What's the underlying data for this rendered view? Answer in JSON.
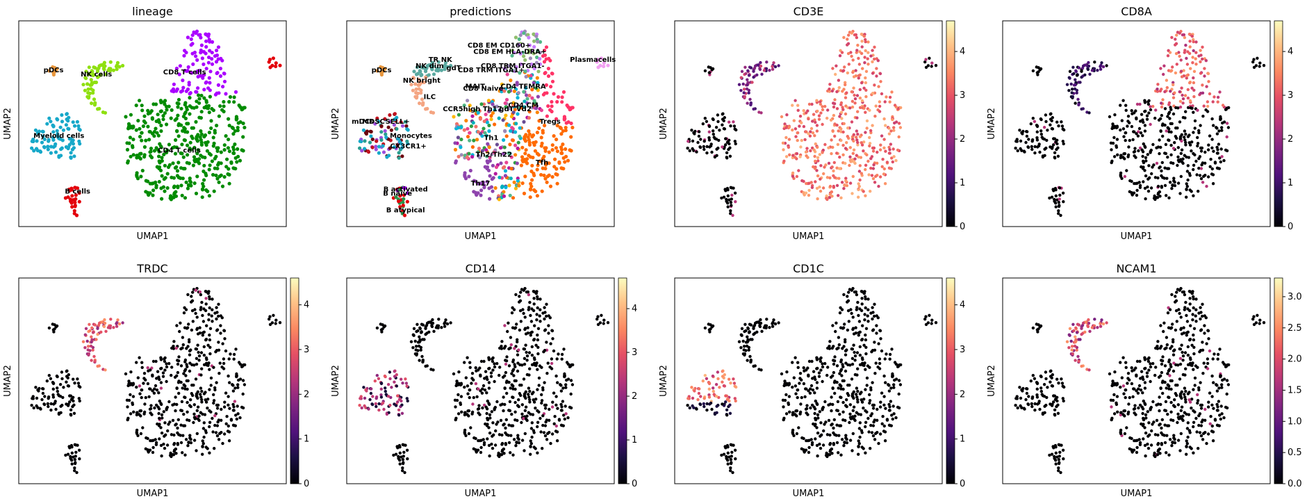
{
  "figure": {
    "panels": [
      {
        "title": "lineage",
        "xlabel": "UMAP1",
        "ylabel": "UMAP2",
        "kind": "categorical"
      },
      {
        "title": "predictions",
        "xlabel": "UMAP1",
        "ylabel": "UMAP2",
        "kind": "categorical"
      },
      {
        "title": "CD3E",
        "xlabel": "UMAP1",
        "ylabel": "UMAP2",
        "kind": "expression",
        "colorbar_ticks": [
          "0",
          "1",
          "2",
          "3",
          "4"
        ]
      },
      {
        "title": "CD8A",
        "xlabel": "UMAP1",
        "ylabel": "UMAP2",
        "kind": "expression",
        "colorbar_ticks": [
          "0",
          "1",
          "2",
          "3",
          "4"
        ]
      },
      {
        "title": "TRDC",
        "xlabel": "UMAP1",
        "ylabel": "UMAP2",
        "kind": "expression",
        "colorbar_ticks": [
          "0",
          "1",
          "2",
          "3",
          "4"
        ]
      },
      {
        "title": "CD14",
        "xlabel": "UMAP1",
        "ylabel": "UMAP2",
        "kind": "expression",
        "colorbar_ticks": [
          "0",
          "1",
          "2",
          "3",
          "4"
        ]
      },
      {
        "title": "CD1C",
        "xlabel": "UMAP1",
        "ylabel": "UMAP2",
        "kind": "expression",
        "colorbar_ticks": [
          "0",
          "1",
          "2",
          "3",
          "4"
        ]
      },
      {
        "title": "NCAM1",
        "xlabel": "UMAP1",
        "ylabel": "UMAP2",
        "kind": "expression",
        "colorbar_ticks": [
          "0.0",
          "0.5",
          "1.0",
          "1.5",
          "2.0",
          "2.5",
          "3.0"
        ]
      }
    ],
    "colormap": "magma",
    "colors": {
      "CD4 T cells": "#008b00",
      "CD8 T cells": "#aa00ff",
      "Myeloid cells": "#17a8c9",
      "NK cells": "#8fe010",
      "B cells": "#e3000b",
      "pDCs": "#e8963c",
      "Plasmacells": "#f2a0f2"
    }
  },
  "chart_data": [
    {
      "type": "scatter",
      "title": "lineage",
      "xlabel": "UMAP1",
      "ylabel": "UMAP2",
      "categories": [
        "pDCs",
        "NK cells",
        "CD8 T cells",
        "Myeloid cells",
        "CD4 T cells",
        "B cells"
      ],
      "legend": "on data"
    },
    {
      "type": "scatter",
      "title": "predictions",
      "xlabel": "UMAP1",
      "ylabel": "UMAP2",
      "categories": [
        "CD8 EM CD160+",
        "CD8 EM HLA-DRA+",
        "Plasmacells",
        "TR NK",
        "NK dim",
        "gdT",
        "CD8 TRM ITGA1-",
        "CD8 TRM ITGA1+",
        "pDCs",
        "NK bright",
        "MAIT",
        "CD8 Naive",
        "CD4 TEMRA",
        "ILC",
        "CD4 CM",
        "CCR5high Th17",
        "gdT Vd2",
        "Tregs",
        "mDCs",
        "MDSC",
        "Monocytes",
        "Th1",
        "Th2/Th22",
        "Tfh",
        "Th17",
        "B activated",
        "B naive",
        "B atypical",
        "SELL+",
        "CX3CR1+"
      ],
      "legend": "on data"
    },
    {
      "type": "scatter",
      "title": "CD3E",
      "xlabel": "UMAP1",
      "ylabel": "UMAP2",
      "colorbar": {
        "min": 0,
        "max": 4.7,
        "ticks": [
          0,
          1,
          2,
          3,
          4
        ]
      }
    },
    {
      "type": "scatter",
      "title": "CD8A",
      "xlabel": "UMAP1",
      "ylabel": "UMAP2",
      "colorbar": {
        "min": 0,
        "max": 4.7,
        "ticks": [
          0,
          1,
          2,
          3,
          4
        ]
      }
    },
    {
      "type": "scatter",
      "title": "TRDC",
      "xlabel": "UMAP1",
      "ylabel": "UMAP2",
      "colorbar": {
        "min": 0,
        "max": 4.6,
        "ticks": [
          0,
          1,
          2,
          3,
          4
        ]
      }
    },
    {
      "type": "scatter",
      "title": "CD14",
      "xlabel": "UMAP1",
      "ylabel": "UMAP2",
      "colorbar": {
        "min": 0,
        "max": 4.7,
        "ticks": [
          0,
          1,
          2,
          3,
          4
        ]
      }
    },
    {
      "type": "scatter",
      "title": "CD1C",
      "xlabel": "UMAP1",
      "ylabel": "UMAP2",
      "colorbar": {
        "min": 0,
        "max": 4.6,
        "ticks": [
          0,
          1,
          2,
          3,
          4
        ]
      }
    },
    {
      "type": "scatter",
      "title": "NCAM1",
      "xlabel": "UMAP1",
      "ylabel": "UMAP2",
      "colorbar": {
        "min": 0,
        "max": 3.3,
        "ticks": [
          0,
          0.5,
          1,
          1.5,
          2,
          2.5,
          3
        ]
      }
    }
  ]
}
